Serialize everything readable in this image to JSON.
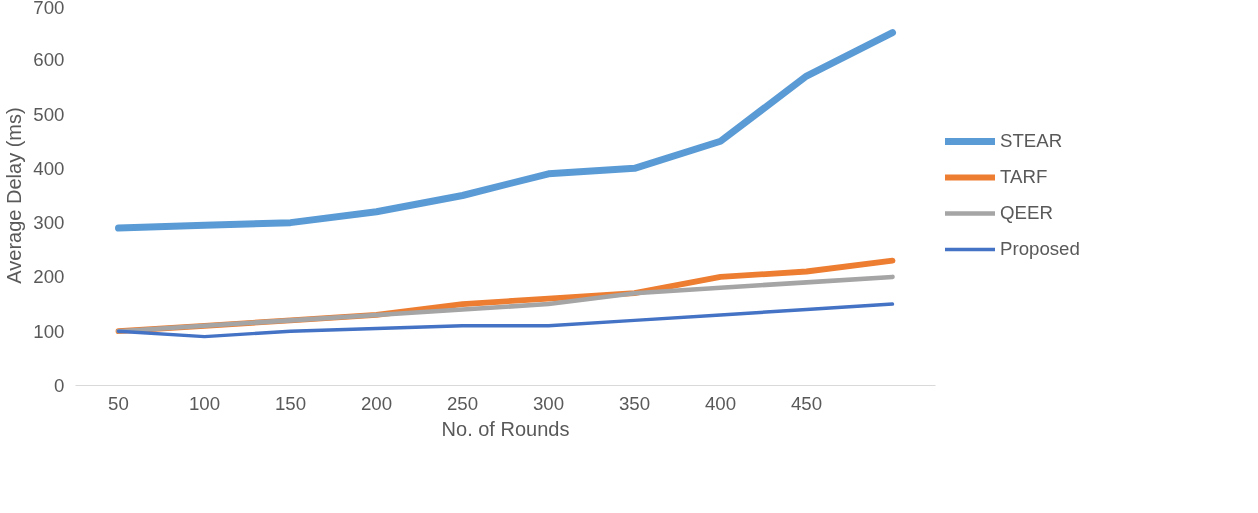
{
  "chart_data": {
    "type": "line",
    "xlabel": "No. of Rounds",
    "ylabel": "Average Delay (ms)",
    "categories": [
      "50",
      "100",
      "150",
      "200",
      "250",
      "300",
      "350",
      "400",
      "450",
      null
    ],
    "ylim": [
      0,
      700
    ],
    "yticks": [
      0,
      100,
      200,
      300,
      400,
      500,
      600,
      700
    ],
    "grid": false,
    "legend": "right",
    "marker": "none",
    "series": [
      {
        "name": "STEAR",
        "color": "#5b9bd5",
        "values": [
          290,
          295,
          300,
          320,
          350,
          390,
          400,
          450,
          570,
          650
        ]
      },
      {
        "name": "TARF",
        "color": "#ed7d31",
        "values": [
          100,
          110,
          120,
          130,
          150,
          160,
          170,
          200,
          210,
          230
        ]
      },
      {
        "name": "QEER",
        "color": "#a5a5a5",
        "values": [
          100,
          110,
          120,
          130,
          140,
          150,
          170,
          180,
          190,
          200
        ]
      },
      {
        "name": "Proposed",
        "color": "#4472c4",
        "values": [
          100,
          90,
          100,
          105,
          110,
          110,
          120,
          130,
          140,
          150
        ]
      }
    ]
  }
}
